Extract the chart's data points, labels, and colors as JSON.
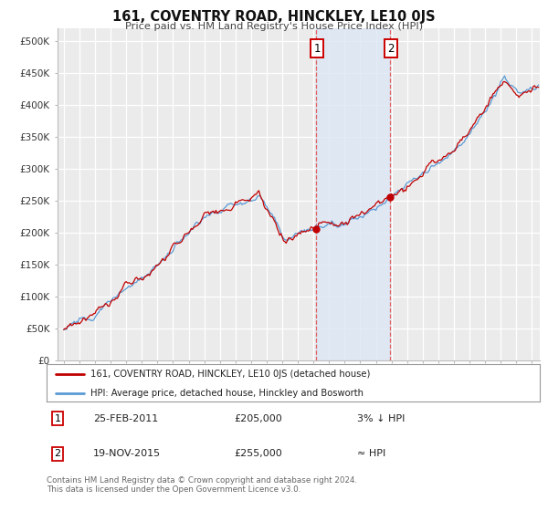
{
  "title": "161, COVENTRY ROAD, HINCKLEY, LE10 0JS",
  "subtitle": "Price paid vs. HM Land Registry's House Price Index (HPI)",
  "ylim": [
    0,
    520000
  ],
  "yticks": [
    0,
    50000,
    100000,
    150000,
    200000,
    250000,
    300000,
    350000,
    400000,
    450000,
    500000
  ],
  "ytick_labels": [
    "£0",
    "£50K",
    "£100K",
    "£150K",
    "£200K",
    "£250K",
    "£300K",
    "£350K",
    "£400K",
    "£450K",
    "£500K"
  ],
  "background_color": "#ffffff",
  "plot_background": "#ebebeb",
  "grid_color": "#ffffff",
  "line_color_hpi": "#5b9bd5",
  "line_color_paid": "#c00000",
  "shade_color": "#dce6f4",
  "shade_alpha": 0.8,
  "vline_color": "#e06060",
  "transaction1_year": 2011.15,
  "transaction1_value": 205000,
  "transaction2_year": 2015.9,
  "transaction2_value": 255000,
  "legend_entries": [
    "161, COVENTRY ROAD, HINCKLEY, LE10 0JS (detached house)",
    "HPI: Average price, detached house, Hinckley and Bosworth"
  ],
  "annotation1_label": "1",
  "annotation1_date": "25-FEB-2011",
  "annotation1_price": "£205,000",
  "annotation1_hpi": "3% ↓ HPI",
  "annotation2_label": "2",
  "annotation2_date": "19-NOV-2015",
  "annotation2_price": "£255,000",
  "annotation2_hpi": "≈ HPI",
  "footer": "Contains HM Land Registry data © Crown copyright and database right 2024.\nThis data is licensed under the Open Government Licence v3.0.",
  "xlim_start": 1994.6,
  "xlim_end": 2025.5,
  "start_year": 1995,
  "end_year": 2025
}
